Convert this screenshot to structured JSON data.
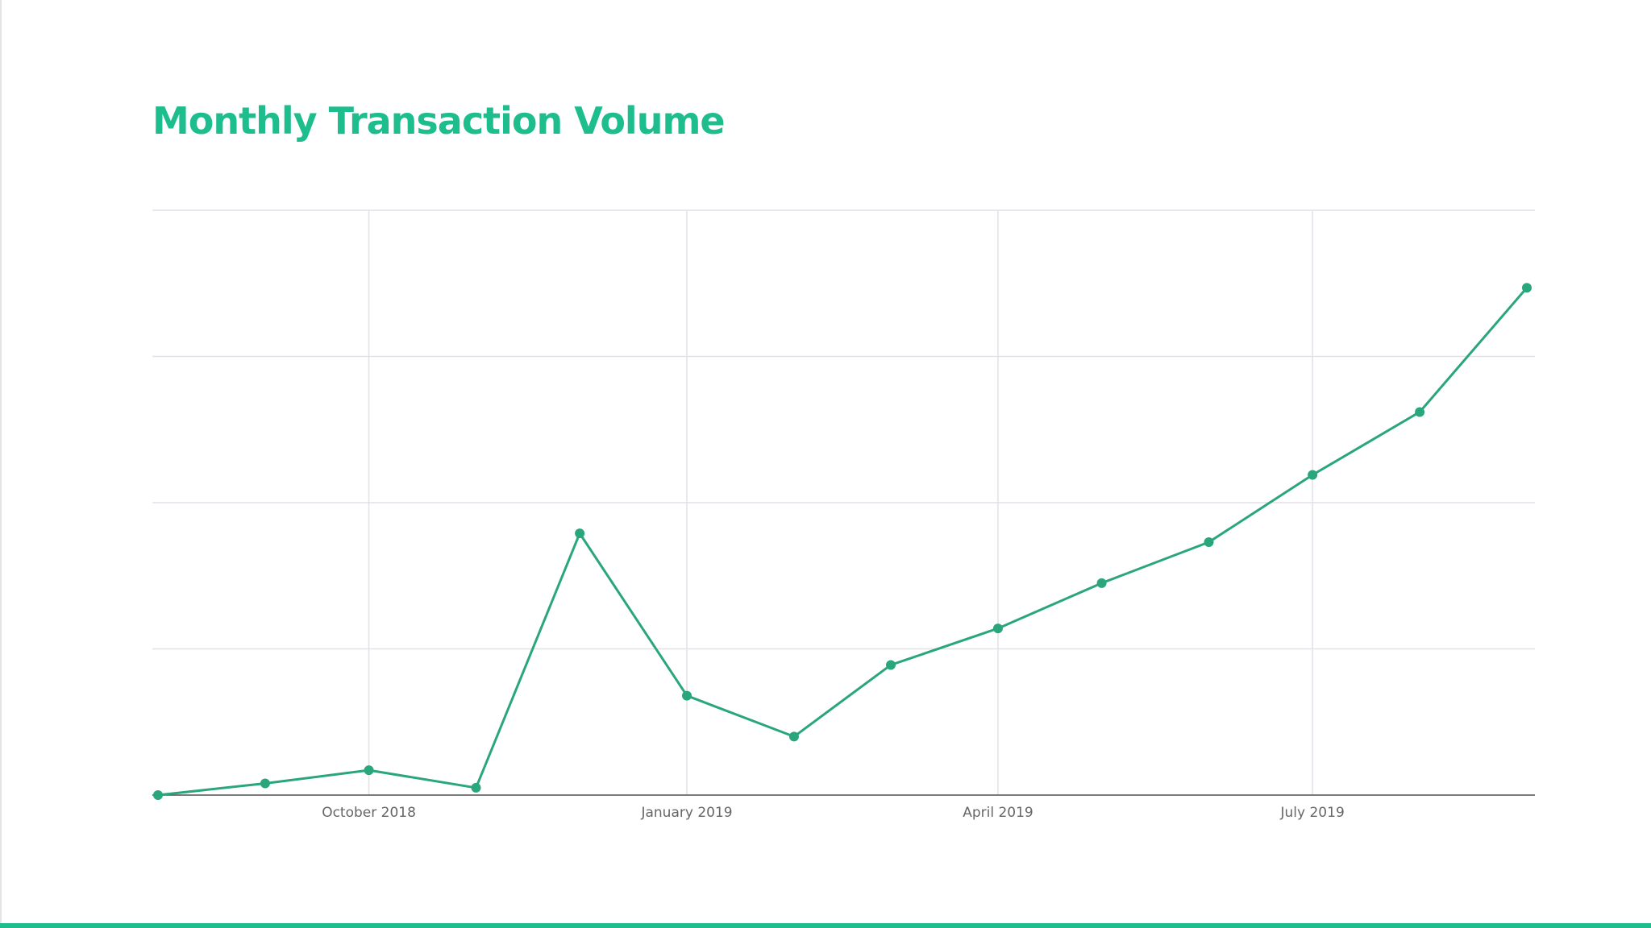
{
  "chart_data": {
    "type": "line",
    "title": "Monthly Transaction Volume",
    "x": [
      "2018-08",
      "2018-09",
      "2018-10",
      "2018-11",
      "2018-12",
      "2019-01",
      "2019-02",
      "2019-03",
      "2019-04",
      "2019-05",
      "2019-06",
      "2019-07",
      "2019-08",
      "2019-09"
    ],
    "values": [
      0,
      0.08,
      0.17,
      0.05,
      1.79,
      0.68,
      0.4,
      0.89,
      1.14,
      1.45,
      1.73,
      2.19,
      2.62,
      3.47
    ],
    "color": "#2aa67c",
    "xlim": [
      "2018-08",
      "2019-09"
    ],
    "xticks": [
      {
        "value": "2018-10",
        "label": "October 2018"
      },
      {
        "value": "2019-01",
        "label": "January 2019"
      },
      {
        "value": "2019-04",
        "label": "April 2019"
      },
      {
        "value": "2019-07",
        "label": "July 2019"
      }
    ],
    "ylim": [
      0,
      4
    ],
    "ygrid": [
      0,
      1,
      2,
      3,
      4
    ],
    "grid": true
  }
}
